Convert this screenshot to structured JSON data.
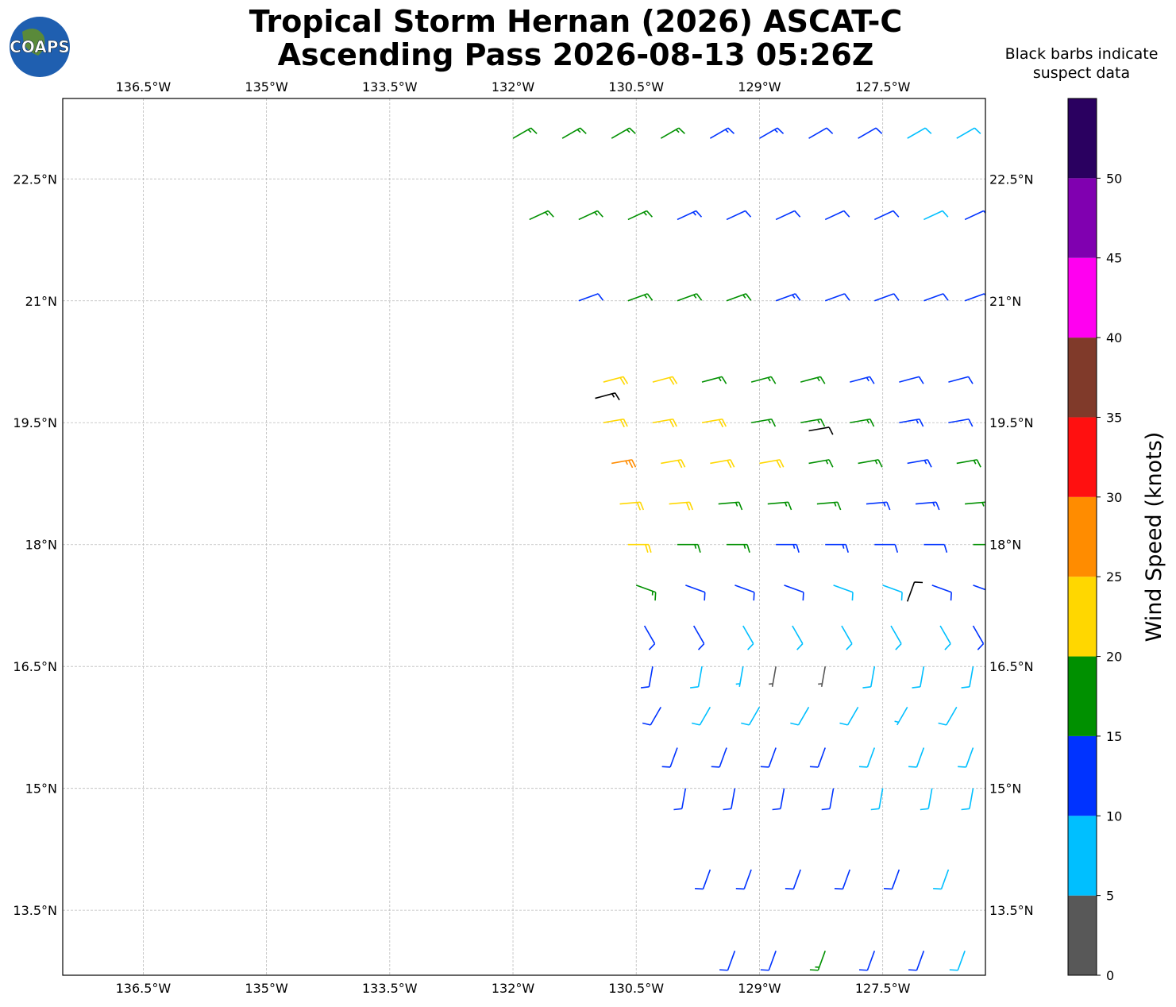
{
  "chart_data": {
    "type": "barbs",
    "title": [
      "Tropical Storm Hernan (2026) ASCAT-C",
      "Ascending Pass 2026-08-13 05:26Z"
    ],
    "logo": "COAPS",
    "note": [
      "Black barbs indicate",
      "suspect data"
    ],
    "colorbar_label": "Wind Speed (knots)",
    "xlim": [
      -137.48,
      -126.25
    ],
    "ylim": [
      12.7,
      23.49
    ],
    "xticks": [
      {
        "value": -136.5,
        "label": "136.5°W"
      },
      {
        "value": -135,
        "label": "135°W"
      },
      {
        "value": -133.5,
        "label": "133.5°W"
      },
      {
        "value": -132,
        "label": "132°W"
      },
      {
        "value": -130.5,
        "label": "130.5°W"
      },
      {
        "value": -129,
        "label": "129°W"
      },
      {
        "value": -127.5,
        "label": "127.5°W"
      }
    ],
    "yticks": [
      {
        "value": 13.5,
        "label": "13.5°N"
      },
      {
        "value": 15,
        "label": "15°N"
      },
      {
        "value": 16.5,
        "label": "16.5°N"
      },
      {
        "value": 18,
        "label": "18°N"
      },
      {
        "value": 19.5,
        "label": "19.5°N"
      },
      {
        "value": 21,
        "label": "21°N"
      },
      {
        "value": 22.5,
        "label": "22.5°N"
      }
    ],
    "grid": true,
    "colorbar": {
      "bounds": [
        0,
        5,
        10,
        15,
        20,
        25,
        30,
        35,
        40,
        45,
        50,
        55
      ],
      "colors": [
        "#585858",
        "#00bfff",
        "#0033ff",
        "#009000",
        "#ffd700",
        "#ff8c00",
        "#ff1010",
        "#803a2a",
        "#ff00f0",
        "#8000b0",
        "#2a0060"
      ],
      "ticks": [
        0,
        5,
        10,
        15,
        20,
        25,
        30,
        35,
        40,
        45,
        50
      ]
    },
    "suspect_color": "#000000",
    "barbs": [
      [
        -132.0,
        23,
        17,
        60
      ],
      [
        -131.4,
        23,
        17,
        60
      ],
      [
        -130.8,
        23,
        17,
        60
      ],
      [
        -130.2,
        23,
        16,
        60
      ],
      [
        -129.6,
        23,
        14,
        60
      ],
      [
        -129.0,
        23,
        13,
        60
      ],
      [
        -128.4,
        23,
        12,
        60
      ],
      [
        -127.8,
        23,
        11,
        60
      ],
      [
        -127.2,
        23,
        8,
        60
      ],
      [
        -126.6,
        23,
        8,
        60
      ],
      [
        -131.8,
        22,
        17,
        65
      ],
      [
        -131.2,
        22,
        17,
        65
      ],
      [
        -130.6,
        22,
        16,
        65
      ],
      [
        -130.0,
        22,
        13,
        65
      ],
      [
        -129.4,
        22,
        12,
        65
      ],
      [
        -128.8,
        22,
        12,
        65
      ],
      [
        -128.2,
        22,
        12,
        65
      ],
      [
        -127.6,
        22,
        11,
        65
      ],
      [
        -127.0,
        22,
        9,
        65
      ],
      [
        -126.5,
        22,
        12,
        65
      ],
      [
        -131.2,
        21,
        12,
        70
      ],
      [
        -130.6,
        21,
        17,
        70
      ],
      [
        -130.0,
        21,
        17,
        70
      ],
      [
        -129.4,
        21,
        16,
        70
      ],
      [
        -128.8,
        21,
        13,
        70
      ],
      [
        -128.2,
        21,
        12,
        70
      ],
      [
        -127.6,
        21,
        12,
        70
      ],
      [
        -127.0,
        21,
        12,
        70
      ],
      [
        -126.5,
        21,
        12,
        70
      ],
      [
        -130.9,
        20,
        22,
        75
      ],
      [
        -130.3,
        20,
        22,
        75
      ],
      [
        -129.7,
        20,
        17,
        75
      ],
      [
        -129.1,
        20,
        17,
        75
      ],
      [
        -128.5,
        20,
        16,
        75
      ],
      [
        -127.9,
        20,
        13,
        75
      ],
      [
        -127.3,
        20,
        12,
        75
      ],
      [
        -126.7,
        20,
        12,
        75
      ],
      [
        -130.9,
        19.5,
        22,
        80
      ],
      [
        -130.3,
        19.5,
        22,
        80
      ],
      [
        -129.7,
        19.5,
        22,
        80
      ],
      [
        -129.1,
        19.5,
        17,
        80
      ],
      [
        -128.5,
        19.5,
        17,
        80
      ],
      [
        -127.9,
        19.5,
        16,
        80
      ],
      [
        -127.3,
        19.5,
        13,
        80
      ],
      [
        -126.7,
        19.5,
        12,
        80
      ],
      [
        -130.8,
        19,
        27,
        80
      ],
      [
        -130.2,
        19,
        22,
        80
      ],
      [
        -129.6,
        19,
        22,
        80
      ],
      [
        -129.0,
        19,
        22,
        80
      ],
      [
        -128.4,
        19,
        17,
        80
      ],
      [
        -127.8,
        19,
        17,
        80
      ],
      [
        -127.2,
        19,
        13,
        80
      ],
      [
        -126.6,
        19,
        17,
        80
      ],
      [
        -130.7,
        18.5,
        22,
        85
      ],
      [
        -130.1,
        18.5,
        22,
        85
      ],
      [
        -129.5,
        18.5,
        17,
        85
      ],
      [
        -128.9,
        18.5,
        17,
        85
      ],
      [
        -128.3,
        18.5,
        17,
        85
      ],
      [
        -127.7,
        18.5,
        13,
        85
      ],
      [
        -127.1,
        18.5,
        13,
        85
      ],
      [
        -126.5,
        18.5,
        17,
        85
      ],
      [
        -130.6,
        18,
        22,
        90
      ],
      [
        -130.0,
        18,
        17,
        90
      ],
      [
        -129.4,
        18,
        17,
        90
      ],
      [
        -128.8,
        18,
        13,
        90
      ],
      [
        -128.2,
        18,
        13,
        90
      ],
      [
        -127.6,
        18,
        12,
        90
      ],
      [
        -127.0,
        18,
        12,
        90
      ],
      [
        -126.4,
        18,
        17,
        90
      ],
      [
        -130.5,
        17.5,
        17,
        110
      ],
      [
        -129.9,
        17.5,
        12,
        110
      ],
      [
        -129.3,
        17.5,
        12,
        110
      ],
      [
        -128.7,
        17.5,
        12,
        110
      ],
      [
        -128.1,
        17.5,
        8,
        110
      ],
      [
        -127.5,
        17.5,
        8,
        110
      ],
      [
        -126.9,
        17.5,
        12,
        110
      ],
      [
        -126.4,
        17.5,
        12,
        110
      ],
      [
        -130.4,
        17,
        12,
        150
      ],
      [
        -129.8,
        17,
        12,
        150
      ],
      [
        -129.2,
        17,
        8,
        150
      ],
      [
        -128.6,
        17,
        8,
        150
      ],
      [
        -128.0,
        17,
        8,
        150
      ],
      [
        -127.4,
        17,
        8,
        150
      ],
      [
        -126.8,
        17,
        8,
        150
      ],
      [
        -126.4,
        17,
        12,
        150
      ],
      [
        -130.3,
        16.5,
        12,
        190
      ],
      [
        -129.7,
        16.5,
        8,
        190
      ],
      [
        -129.2,
        16.5,
        7,
        190
      ],
      [
        -128.8,
        16.5,
        3,
        190
      ],
      [
        -128.2,
        16.5,
        3,
        190
      ],
      [
        -127.6,
        16.5,
        8,
        190
      ],
      [
        -127.0,
        16.5,
        8,
        190
      ],
      [
        -126.4,
        16.5,
        8,
        190
      ],
      [
        -130.2,
        16,
        12,
        210
      ],
      [
        -129.6,
        16,
        8,
        210
      ],
      [
        -129.0,
        16,
        8,
        210
      ],
      [
        -128.4,
        16,
        8,
        210
      ],
      [
        -127.8,
        16,
        8,
        210
      ],
      [
        -127.2,
        16,
        7,
        210
      ],
      [
        -126.6,
        16,
        8,
        210
      ],
      [
        -130.0,
        15.5,
        12,
        200
      ],
      [
        -129.4,
        15.5,
        12,
        200
      ],
      [
        -128.8,
        15.5,
        12,
        200
      ],
      [
        -128.2,
        15.5,
        12,
        200
      ],
      [
        -127.6,
        15.5,
        8,
        200
      ],
      [
        -127.0,
        15.5,
        8,
        200
      ],
      [
        -126.4,
        15.5,
        8,
        200
      ],
      [
        -129.9,
        15,
        12,
        190
      ],
      [
        -129.3,
        15,
        12,
        190
      ],
      [
        -128.7,
        15,
        12,
        190
      ],
      [
        -128.1,
        15,
        12,
        190
      ],
      [
        -127.5,
        15,
        8,
        190
      ],
      [
        -126.9,
        15,
        8,
        190
      ],
      [
        -126.4,
        15,
        8,
        190
      ],
      [
        -129.6,
        14,
        12,
        200
      ],
      [
        -129.1,
        14,
        12,
        200
      ],
      [
        -128.5,
        14,
        12,
        200
      ],
      [
        -127.9,
        14,
        12,
        200
      ],
      [
        -127.3,
        14,
        12,
        200
      ],
      [
        -126.7,
        14,
        8,
        200
      ],
      [
        -129.3,
        13,
        12,
        200
      ],
      [
        -128.8,
        13,
        12,
        200
      ],
      [
        -128.2,
        13,
        17,
        200
      ],
      [
        -127.6,
        13,
        12,
        200
      ],
      [
        -127.0,
        13,
        12,
        200
      ],
      [
        -126.5,
        13,
        8,
        200
      ]
    ],
    "suspect_barbs": [
      [
        -131.0,
        19.8,
        17,
        75
      ],
      [
        -128.4,
        19.4,
        12,
        80
      ],
      [
        -127.2,
        17.3,
        12,
        20
      ]
    ]
  }
}
